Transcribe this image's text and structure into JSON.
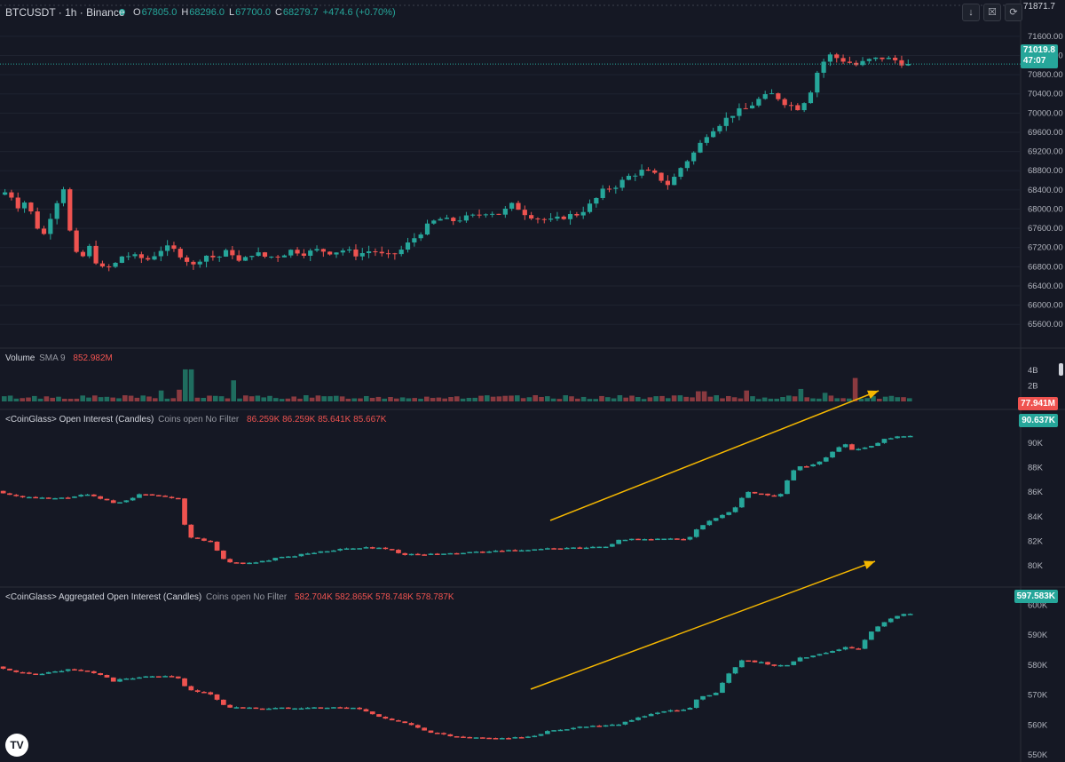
{
  "header": {
    "symbol": "BTCUSDT · 1h · Binance",
    "ohlc": [
      {
        "k": "O",
        "v": "67805.0"
      },
      {
        "k": "H",
        "v": "68296.0"
      },
      {
        "k": "L",
        "v": "67700.0"
      },
      {
        "k": "C",
        "v": "68279.7"
      },
      {
        "k": "",
        "v": "+474.6 (+0.70%)"
      }
    ],
    "buttons": [
      "↓",
      "☒",
      "⟳"
    ]
  },
  "panes": {
    "volume": {
      "title": "Volume",
      "sub": "SMA 9",
      "vals": "852.982M",
      "last": "77.941M"
    },
    "oi": {
      "title": "<CoinGlass> Open Interest (Candles)",
      "sub": "Coins open No Filter",
      "vals": "86.259K  86.259K  85.641K  85.667K",
      "last": "90.637K"
    },
    "agg": {
      "title": "<CoinGlass> Aggregated Open Interest (Candles)",
      "sub": "Coins open No Filter",
      "vals": "582.704K  582.865K  578.748K  578.787K",
      "last": "597.583K"
    }
  },
  "price_badge": {
    "value": "71019.8",
    "countdown": "47:07"
  },
  "top_label": "71871.7",
  "logo": "TV",
  "colors": {
    "up": "#26a69a",
    "down": "#ef5350",
    "bg": "#151824",
    "grid": "#1f2330",
    "arrow": "#f5b700"
  },
  "chart_data": [
    {
      "type": "candlestick",
      "title": "BTCUSDT · 1h · Binance",
      "ylim": [
        65400,
        71800
      ],
      "yticks": [
        71600,
        71200,
        70800,
        70400,
        70000,
        69600,
        69200,
        68800,
        68400,
        68000,
        67600,
        67200,
        66800,
        66400,
        66000,
        65600
      ],
      "anchors": [
        [
          0,
          68300
        ],
        [
          8,
          68380
        ],
        [
          14,
          68050
        ],
        [
          22,
          68180
        ],
        [
          26,
          67850
        ],
        [
          34,
          67400
        ],
        [
          42,
          68000
        ],
        [
          50,
          68450
        ],
        [
          56,
          67350
        ],
        [
          62,
          66900
        ],
        [
          70,
          67200
        ],
        [
          78,
          66750
        ],
        [
          88,
          66800
        ],
        [
          96,
          67050
        ],
        [
          106,
          67000
        ],
        [
          116,
          66950
        ],
        [
          124,
          67150
        ],
        [
          132,
          67200
        ],
        [
          140,
          67050
        ],
        [
          150,
          66820
        ],
        [
          158,
          67050
        ],
        [
          168,
          66980
        ],
        [
          178,
          67150
        ],
        [
          186,
          66870
        ],
        [
          196,
          67100
        ],
        [
          206,
          67000
        ],
        [
          216,
          67030
        ],
        [
          226,
          67150
        ],
        [
          236,
          67080
        ],
        [
          246,
          67150
        ],
        [
          256,
          67100
        ],
        [
          266,
          67150
        ],
        [
          276,
          67050
        ],
        [
          288,
          67150
        ],
        [
          298,
          67000
        ],
        [
          308,
          67100
        ],
        [
          318,
          67350
        ],
        [
          328,
          67600
        ],
        [
          338,
          67800
        ],
        [
          348,
          67750
        ],
        [
          356,
          67800
        ],
        [
          366,
          67850
        ],
        [
          376,
          67950
        ],
        [
          386,
          67900
        ],
        [
          396,
          68100
        ],
        [
          406,
          67900
        ],
        [
          416,
          67800
        ],
        [
          426,
          67750
        ],
        [
          436,
          67850
        ],
        [
          446,
          67900
        ],
        [
          456,
          68100
        ],
        [
          466,
          68400
        ],
        [
          476,
          68500
        ],
        [
          486,
          68700
        ],
        [
          496,
          68800
        ],
        [
          506,
          68700
        ],
        [
          516,
          68500
        ],
        [
          526,
          68900
        ],
        [
          536,
          69200
        ],
        [
          546,
          69600
        ],
        [
          556,
          69800
        ],
        [
          566,
          70000
        ],
        [
          576,
          70100
        ],
        [
          586,
          70300
        ],
        [
          596,
          70400
        ],
        [
          606,
          70200
        ],
        [
          616,
          70100
        ],
        [
          624,
          70400
        ],
        [
          632,
          71000
        ],
        [
          640,
          71200
        ],
        [
          650,
          71100
        ],
        [
          660,
          71000
        ],
        [
          670,
          71100
        ],
        [
          680,
          71150
        ],
        [
          690,
          71100
        ],
        [
          700,
          71000
        ]
      ],
      "candles_count": 1020,
      "last": 71019.8
    },
    {
      "type": "bar",
      "title": "Volume SMA 9",
      "ylim": [
        0,
        5000000000
      ],
      "yticks": [
        {
          "v": 4000000000,
          "l": "4B"
        },
        {
          "v": 2000000000,
          "l": "2B"
        }
      ],
      "highlights": [
        [
          210,
          4100000000
        ],
        [
          258,
          2700000000
        ],
        [
          178,
          1400000000
        ],
        [
          197,
          1500000000
        ],
        [
          787,
          1300000000
        ],
        [
          838,
          1400000000
        ],
        [
          897,
          1600000000
        ],
        [
          963,
          3000000000
        ],
        [
          925,
          1100000000
        ]
      ],
      "last": "77.941M"
    },
    {
      "type": "candlestick",
      "title": "<CoinGlass> Open Interest (Candles)",
      "ylim": [
        79500,
        91500
      ],
      "yticks": [
        {
          "v": 90000,
          "l": "90K"
        },
        {
          "v": 88000,
          "l": "88K"
        },
        {
          "v": 86000,
          "l": "86K"
        },
        {
          "v": 84000,
          "l": "84K"
        },
        {
          "v": 82000,
          "l": "82K"
        },
        {
          "v": 80000,
          "l": "80K"
        }
      ],
      "anchors": [
        [
          0,
          86100
        ],
        [
          20,
          85700
        ],
        [
          40,
          85550
        ],
        [
          60,
          85450
        ],
        [
          80,
          85550
        ],
        [
          100,
          85800
        ],
        [
          120,
          85400
        ],
        [
          135,
          85050
        ],
        [
          150,
          85500
        ],
        [
          165,
          85900
        ],
        [
          190,
          85650
        ],
        [
          205,
          85500
        ],
        [
          215,
          82300
        ],
        [
          240,
          82000
        ],
        [
          258,
          80300
        ],
        [
          290,
          80200
        ],
        [
          310,
          80550
        ],
        [
          350,
          81000
        ],
        [
          380,
          81300
        ],
        [
          420,
          81500
        ],
        [
          440,
          81400
        ],
        [
          460,
          80900
        ],
        [
          500,
          80950
        ],
        [
          540,
          81100
        ],
        [
          580,
          81250
        ],
        [
          620,
          81400
        ],
        [
          660,
          81450
        ],
        [
          690,
          81600
        ],
        [
          700,
          82150
        ],
        [
          740,
          82150
        ],
        [
          780,
          82200
        ],
        [
          790,
          83100
        ],
        [
          810,
          83900
        ],
        [
          830,
          84600
        ],
        [
          845,
          86000
        ],
        [
          860,
          85900
        ],
        [
          875,
          85700
        ],
        [
          880,
          85400
        ],
        [
          895,
          87600
        ],
        [
          905,
          88100
        ],
        [
          920,
          88200
        ],
        [
          930,
          88600
        ],
        [
          945,
          89500
        ],
        [
          955,
          89900
        ],
        [
          965,
          89400
        ],
        [
          985,
          89700
        ],
        [
          1000,
          90300
        ],
        [
          1015,
          90500
        ],
        [
          1025,
          90600
        ]
      ],
      "last": "90.637K"
    },
    {
      "type": "candlestick",
      "title": "<CoinGlass> Aggregated Open Interest (Candles)",
      "ylim": [
        550000,
        601000
      ],
      "yticks": [
        {
          "v": 600000,
          "l": "600K"
        },
        {
          "v": 590000,
          "l": "590K"
        },
        {
          "v": 580000,
          "l": "580K"
        },
        {
          "v": 570000,
          "l": "570K"
        },
        {
          "v": 560000,
          "l": "560K"
        },
        {
          "v": 550000,
          "l": "550K"
        }
      ],
      "anchors": [
        [
          0,
          579500
        ],
        [
          20,
          577500
        ],
        [
          40,
          577000
        ],
        [
          60,
          577500
        ],
        [
          80,
          578500
        ],
        [
          100,
          578000
        ],
        [
          120,
          576500
        ],
        [
          130,
          574500
        ],
        [
          145,
          575500
        ],
        [
          165,
          576000
        ],
        [
          190,
          576500
        ],
        [
          205,
          575500
        ],
        [
          215,
          571500
        ],
        [
          240,
          570500
        ],
        [
          258,
          566000
        ],
        [
          300,
          565500
        ],
        [
          340,
          565800
        ],
        [
          380,
          565800
        ],
        [
          405,
          565700
        ],
        [
          420,
          564000
        ],
        [
          440,
          562000
        ],
        [
          460,
          560500
        ],
        [
          490,
          557500
        ],
        [
          520,
          555800
        ],
        [
          560,
          555500
        ],
        [
          600,
          555900
        ],
        [
          620,
          557800
        ],
        [
          660,
          559500
        ],
        [
          700,
          560300
        ],
        [
          740,
          564000
        ],
        [
          780,
          565500
        ],
        [
          790,
          569000
        ],
        [
          810,
          570500
        ],
        [
          820,
          575500
        ],
        [
          840,
          581500
        ],
        [
          860,
          581000
        ],
        [
          875,
          579500
        ],
        [
          890,
          580000
        ],
        [
          905,
          582500
        ],
        [
          920,
          583000
        ],
        [
          940,
          584500
        ],
        [
          955,
          586000
        ],
        [
          970,
          585000
        ],
        [
          985,
          591000
        ],
        [
          1000,
          594500
        ],
        [
          1015,
          596500
        ],
        [
          1025,
          597000
        ]
      ],
      "last": "597.583K"
    }
  ]
}
